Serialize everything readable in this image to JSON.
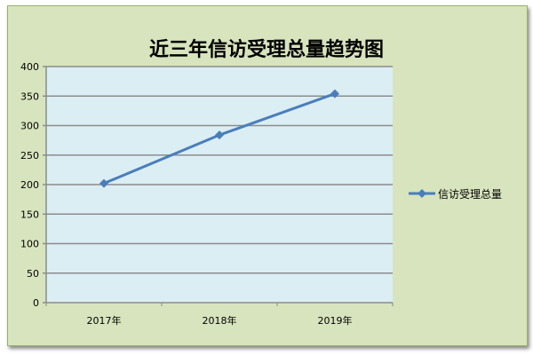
{
  "chart_data": {
    "type": "line",
    "title": "近三年信访受理总量趋势图",
    "categories": [
      "2017年",
      "2018年",
      "2019年"
    ],
    "series": [
      {
        "name": "信访受理总量",
        "values": [
          202,
          284,
          354
        ],
        "color": "#4a7ebb",
        "marker": "diamond"
      }
    ],
    "ylim": [
      0,
      400
    ],
    "yticks": [
      "0",
      "50",
      "100",
      "150",
      "200",
      "250",
      "300",
      "350",
      "400"
    ],
    "grid": true,
    "legend": "right",
    "plot_background": "#dbeef4",
    "chart_background": "#d7e4bd"
  }
}
